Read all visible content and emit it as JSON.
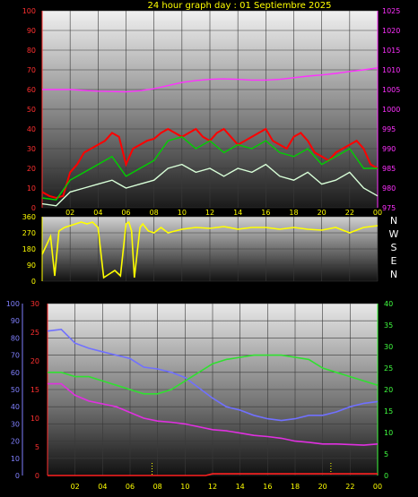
{
  "title": "24 hour graph day : 01 Septiembre 2025",
  "colors": {
    "background": "#000000",
    "left_axis": "#ff3030",
    "right_axis_pressure": "#ff30ff",
    "hour_labels": "#ffff00",
    "direction_axis": "#ffff00",
    "rain_axis": "#8080ff",
    "temp_axis": "#ff3030",
    "pressure_axis2": "#40ff40"
  },
  "compass": [
    "N",
    "W",
    "S",
    "E",
    "N"
  ],
  "chart_data": [
    {
      "type": "line",
      "name": "wind-and-pressure",
      "x_ticks": [
        "02",
        "04",
        "06",
        "08",
        "10",
        "12",
        "14",
        "16",
        "18",
        "20",
        "22",
        "00"
      ],
      "ylim": [
        0,
        100
      ],
      "y_ticks": [
        "100",
        "90",
        "80",
        "70",
        "60",
        "50",
        "40",
        "30",
        "20",
        "10",
        "0"
      ],
      "y2lim": [
        975,
        1025
      ],
      "y2_ticks": [
        "1025",
        "1020",
        "1015",
        "1010",
        "1005",
        "1000",
        "995",
        "990",
        "985",
        "980",
        "975"
      ],
      "series": [
        {
          "color": "#ff0000",
          "axis": "y",
          "x": [
            0,
            0.5,
            1,
            1.5,
            2,
            2.5,
            3,
            3.5,
            4,
            4.5,
            5,
            5.5,
            6,
            6.5,
            7,
            7.5,
            8,
            8.5,
            9,
            9.5,
            10,
            10.5,
            11,
            11.5,
            12,
            12.5,
            13,
            13.5,
            14,
            14.5,
            15,
            15.5,
            16,
            16.5,
            17,
            17.5,
            18,
            18.5,
            19,
            19.5,
            20,
            20.5,
            21,
            21.5,
            22,
            22.5,
            23,
            23.5,
            24
          ],
          "y": [
            8,
            6,
            5,
            6,
            18,
            22,
            28,
            30,
            32,
            34,
            38,
            36,
            22,
            30,
            32,
            34,
            35,
            38,
            40,
            38,
            36,
            38,
            40,
            36,
            34,
            38,
            40,
            36,
            32,
            34,
            36,
            38,
            40,
            34,
            32,
            30,
            36,
            38,
            34,
            28,
            26,
            24,
            28,
            30,
            32,
            34,
            30,
            22,
            20
          ]
        },
        {
          "color": "#00d000",
          "axis": "y",
          "x": [
            0,
            1,
            2,
            3,
            4,
            5,
            6,
            7,
            8,
            9,
            10,
            11,
            12,
            13,
            14,
            15,
            16,
            17,
            18,
            19,
            20,
            21,
            22,
            23,
            24
          ],
          "y": [
            5,
            4,
            14,
            18,
            22,
            26,
            16,
            20,
            24,
            34,
            36,
            30,
            34,
            28,
            32,
            30,
            34,
            28,
            26,
            30,
            22,
            26,
            30,
            20,
            20
          ]
        },
        {
          "color": "#d8ffd8",
          "axis": "y",
          "x": [
            0,
            1,
            2,
            3,
            4,
            5,
            6,
            7,
            8,
            9,
            10,
            11,
            12,
            13,
            14,
            15,
            16,
            17,
            18,
            19,
            20,
            21,
            22,
            23,
            24
          ],
          "y": [
            2,
            1,
            8,
            10,
            12,
            14,
            10,
            12,
            14,
            20,
            22,
            18,
            20,
            16,
            20,
            18,
            22,
            16,
            14,
            18,
            12,
            14,
            18,
            10,
            6
          ]
        },
        {
          "color": "#ff30ff",
          "axis": "y2",
          "x": [
            0,
            1,
            2,
            3,
            4,
            5,
            6,
            7,
            8,
            9,
            10,
            11,
            12,
            13,
            14,
            15,
            16,
            17,
            18,
            19,
            20,
            21,
            22,
            23,
            24
          ],
          "y": [
            1005,
            1005,
            1005,
            1004.8,
            1004.6,
            1004.5,
            1004.4,
            1004.7,
            1005.2,
            1006,
            1006.8,
            1007.3,
            1007.6,
            1007.7,
            1007.6,
            1007.4,
            1007.4,
            1007.6,
            1008,
            1008.4,
            1008.7,
            1009.1,
            1009.6,
            1010,
            1010.5
          ]
        }
      ]
    },
    {
      "type": "line",
      "name": "wind-direction",
      "x_ticks": [
        "02",
        "04",
        "06",
        "08",
        "10",
        "12",
        "14",
        "16",
        "18",
        "20",
        "22",
        "00"
      ],
      "ylim": [
        0,
        360
      ],
      "y_ticks": [
        "360",
        "270",
        "180",
        "90",
        "0"
      ],
      "series": [
        {
          "color": "#ffff00",
          "x": [
            0,
            0.3,
            0.6,
            0.9,
            1.2,
            1.6,
            2,
            2.4,
            2.8,
            3.2,
            3.6,
            4,
            4.4,
            4.8,
            5.2,
            5.6,
            6,
            6.2,
            6.4,
            6.6,
            7,
            7.2,
            7.4,
            7.6,
            8,
            8.5,
            9,
            10,
            11,
            12,
            13,
            14,
            15,
            16,
            17,
            18,
            19,
            20,
            21,
            22,
            23,
            24
          ],
          "y": [
            150,
            200,
            250,
            30,
            280,
            300,
            310,
            320,
            330,
            320,
            330,
            300,
            20,
            40,
            60,
            30,
            320,
            330,
            280,
            20,
            300,
            320,
            300,
            280,
            270,
            300,
            270,
            290,
            300,
            295,
            305,
            290,
            300,
            300,
            290,
            300,
            290,
            285,
            300,
            270,
            300,
            310
          ]
        }
      ]
    },
    {
      "type": "line",
      "name": "temperature-humidity-rain",
      "x_ticks": [
        "02",
        "04",
        "06",
        "08",
        "10",
        "12",
        "14",
        "16",
        "18",
        "20",
        "22",
        "00"
      ],
      "y_rain_lim": [
        0,
        100
      ],
      "y_rain_ticks": [
        "100",
        "90",
        "80",
        "70",
        "60",
        "50",
        "40",
        "30",
        "20",
        "10",
        "0"
      ],
      "y_temp_lim": [
        0,
        30
      ],
      "y_temp_ticks": [
        "30",
        "25",
        "20",
        "15",
        "10",
        "5",
        "0"
      ],
      "y_right_lim": [
        0,
        40
      ],
      "y_right_ticks": [
        "40",
        "35",
        "30",
        "25",
        "20",
        "15",
        "10",
        "5",
        "0"
      ],
      "series": [
        {
          "color": "#7070ff",
          "axis": "rain",
          "x": [
            0,
            1,
            2,
            3,
            4,
            5,
            6,
            7,
            8,
            9,
            10,
            11,
            12,
            13,
            14,
            15,
            16,
            17,
            18,
            19,
            20,
            21,
            22,
            23,
            24
          ],
          "y": [
            84,
            85,
            77,
            74,
            72,
            70,
            68,
            63,
            62,
            60,
            57,
            51,
            45,
            40,
            38,
            35,
            33,
            32,
            33,
            35,
            35,
            37,
            40,
            42,
            43
          ]
        },
        {
          "color": "#30e030",
          "axis": "right",
          "x": [
            0,
            1,
            2,
            3,
            4,
            5,
            6,
            7,
            8,
            9,
            10,
            11,
            12,
            13,
            14,
            15,
            16,
            17,
            18,
            19,
            20,
            21,
            22,
            23,
            24
          ],
          "y": [
            24,
            24,
            23,
            23,
            22,
            21,
            20,
            19,
            19,
            20,
            22,
            24,
            26,
            27,
            27.5,
            28,
            28,
            28,
            27.5,
            27,
            25,
            24,
            23,
            22,
            21
          ]
        },
        {
          "color": "#e030e0",
          "axis": "temp",
          "x": [
            0,
            1,
            2,
            3,
            4,
            5,
            6,
            7,
            8,
            9,
            10,
            11,
            12,
            13,
            14,
            15,
            16,
            17,
            18,
            19,
            20,
            21,
            22,
            23,
            24
          ],
          "y": [
            16,
            16,
            14,
            13,
            12.5,
            12,
            11,
            10,
            9.5,
            9.3,
            9,
            8.5,
            8,
            7.8,
            7.4,
            7,
            6.8,
            6.5,
            6,
            5.8,
            5.5,
            5.5,
            5.4,
            5.3,
            5.5
          ]
        },
        {
          "color": "#ff2020",
          "axis": "temp",
          "x": [
            0,
            6,
            11.5,
            12,
            24
          ],
          "y": [
            0,
            0,
            0,
            0.3,
            0.3
          ]
        }
      ],
      "markers_dotted_x": [
        7.6,
        20.6
      ]
    }
  ]
}
